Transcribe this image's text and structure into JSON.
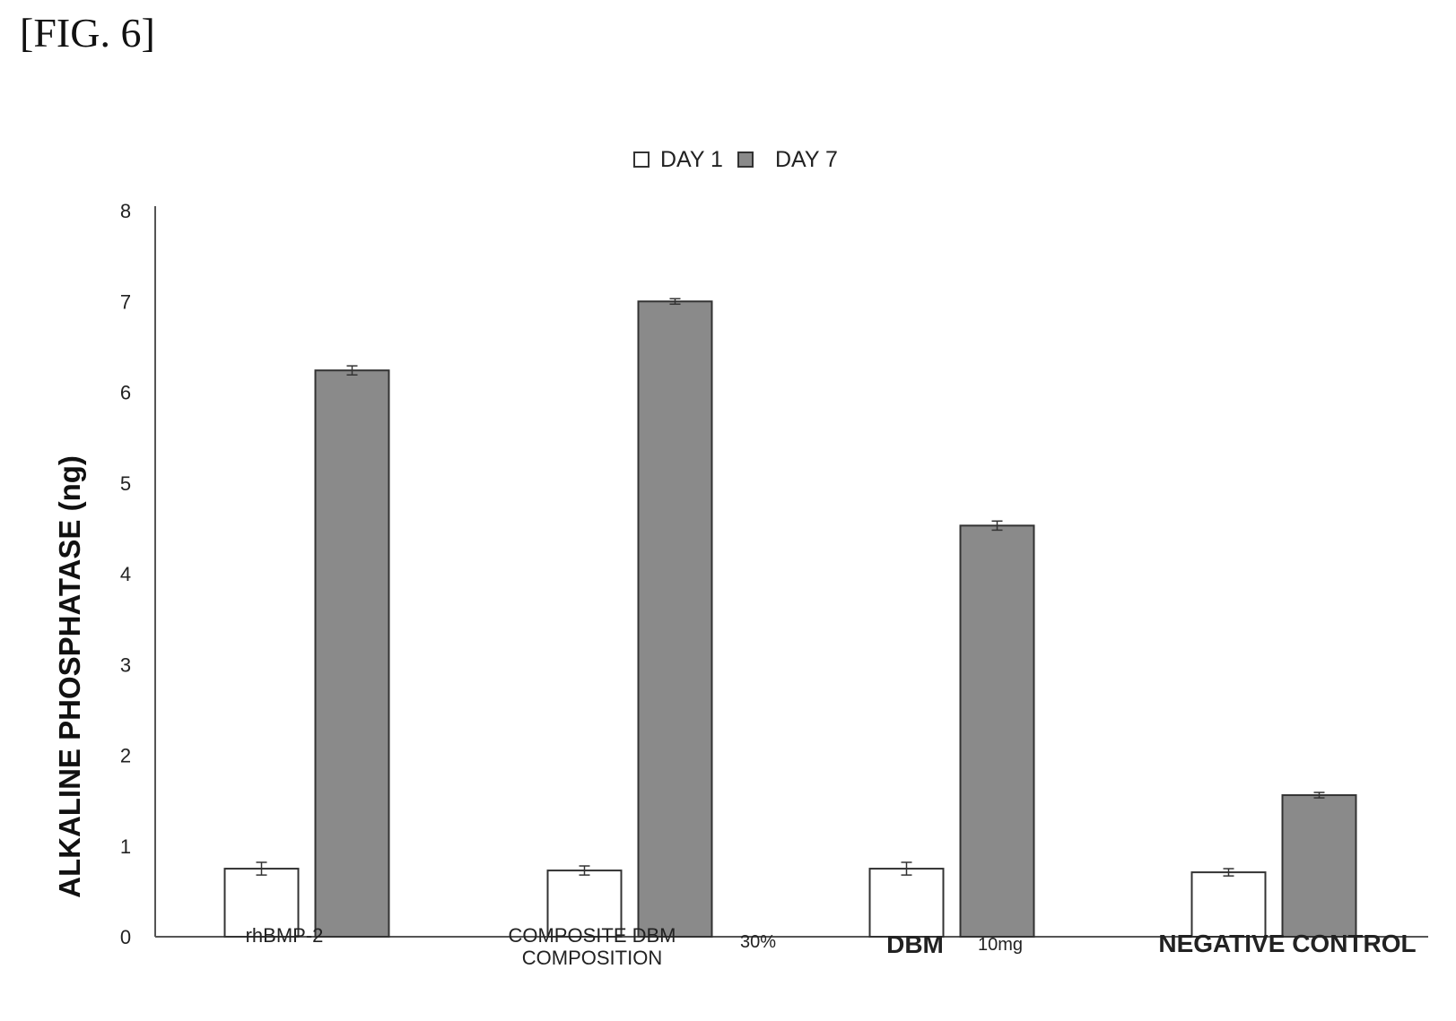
{
  "figure_label": "[FIG. 6]",
  "colors": {
    "day1_fill": "#ffffff",
    "day7_fill": "#8a8a8a",
    "bar_stroke": "#333333",
    "axis": "#555555"
  },
  "chart_data": {
    "type": "bar",
    "title": "",
    "ylabel": "ALKALINE PHOSPHATASE (ng)",
    "xlabel": "",
    "ylim": [
      0,
      8
    ],
    "yticks": [
      "0",
      "1",
      "2",
      "3",
      "4",
      "5",
      "6",
      "7",
      "8"
    ],
    "grid": false,
    "legend_position": "top-center",
    "categories": [
      "rhBMP-2",
      "COMPOSITE DBM COMPOSITION 30%",
      "DBM 10mg",
      "NEGATIVE CONTROL"
    ],
    "category_labels": [
      {
        "main": "rhBMP-2",
        "sub": ""
      },
      {
        "main": "COMPOSITE DBM COMPOSITION",
        "sub": "30%"
      },
      {
        "main": "DBM",
        "sub": "10mg"
      },
      {
        "main": "NEGATIVE CONTROL",
        "sub": ""
      }
    ],
    "series": [
      {
        "name": "DAY 1",
        "values": [
          0.75,
          0.73,
          0.75,
          0.71
        ],
        "errors": [
          0.07,
          0.05,
          0.07,
          0.04
        ]
      },
      {
        "name": "DAY 7",
        "values": [
          6.24,
          7.0,
          4.53,
          1.56
        ],
        "errors": [
          0.05,
          0.03,
          0.05,
          0.03
        ]
      }
    ]
  }
}
